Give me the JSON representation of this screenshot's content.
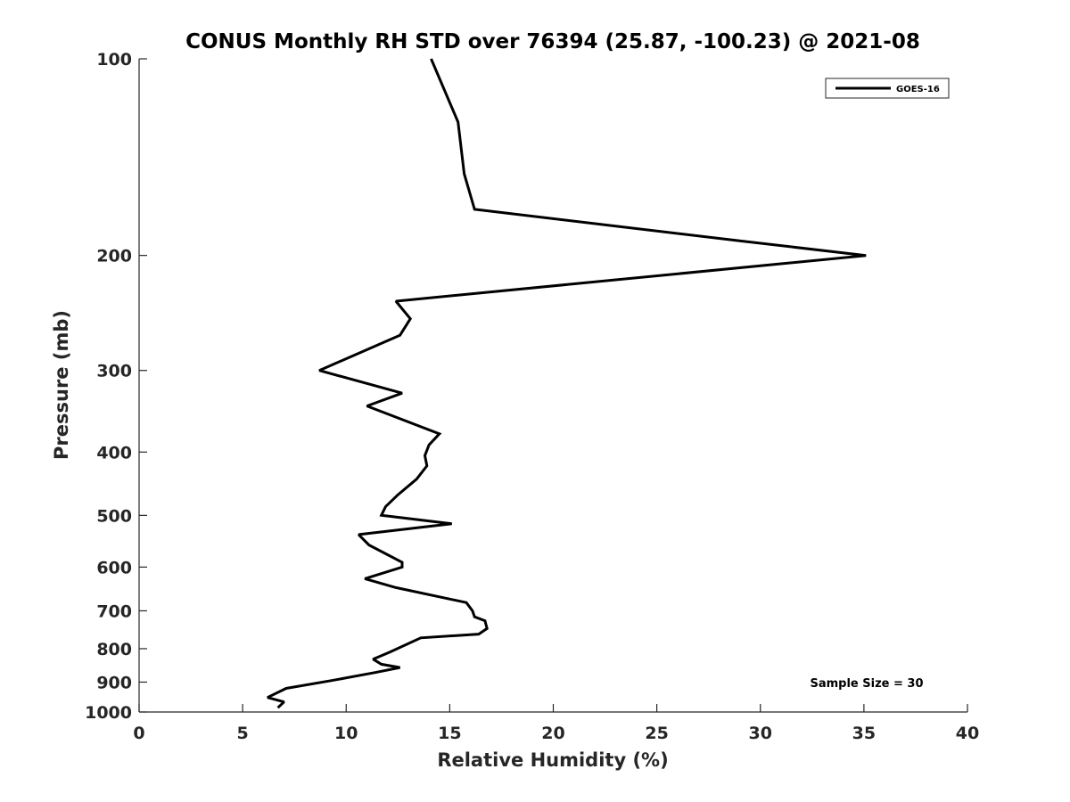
{
  "chart_data": {
    "type": "line",
    "title": "CONUS Monthly RH STD over 76394 (25.87, -100.23) @ 2021-08",
    "xlabel": "Relative Humidity (%)",
    "ylabel": "Pressure (mb)",
    "xlim": [
      0,
      40
    ],
    "ylim": [
      100,
      1000
    ],
    "yscale": "log",
    "yreversed": true,
    "xticks": [
      0,
      5,
      10,
      15,
      20,
      25,
      30,
      35,
      40
    ],
    "yticks": [
      100,
      200,
      300,
      400,
      500,
      600,
      700,
      800,
      900,
      1000
    ],
    "grid": false,
    "legend": {
      "position": "top-right",
      "entries": [
        "GOES-16"
      ]
    },
    "annotation": "Sample Size = 30",
    "series": [
      {
        "name": "GOES-16",
        "color": "#000000",
        "x": [
          14.1,
          15.4,
          15.7,
          16.2,
          29.0,
          35.1,
          12.4,
          13.1,
          12.6,
          8.7,
          12.7,
          11.0,
          14.5,
          14.0,
          13.8,
          13.9,
          13.4,
          12.5,
          11.9,
          11.7,
          15.1,
          10.6,
          11.1,
          12.7,
          12.7,
          10.9,
          12.4,
          15.8,
          16.1,
          16.2,
          16.7,
          16.8,
          16.4,
          13.6,
          12.1,
          11.3,
          11.7,
          12.6,
          11.4,
          9.3,
          7.1,
          6.2,
          7.0,
          6.7
        ],
        "y": [
          100,
          125,
          150,
          170,
          190,
          200,
          235,
          250,
          265,
          300,
          325,
          340,
          375,
          390,
          405,
          420,
          440,
          465,
          485,
          500,
          515,
          535,
          555,
          590,
          600,
          625,
          645,
          680,
          700,
          715,
          725,
          745,
          760,
          770,
          810,
          830,
          845,
          855,
          870,
          895,
          920,
          950,
          965,
          985
        ]
      }
    ]
  }
}
